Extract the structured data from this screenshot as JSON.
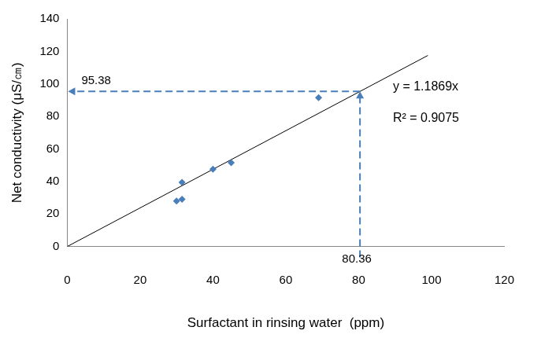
{
  "chart_data": {
    "type": "scatter",
    "x_label": "Surfactant in rinsing water  (ppm)",
    "y_label": "Net conductivity (μS/㎝)",
    "xlim": [
      0,
      120
    ],
    "xticks": [
      0,
      20,
      40,
      60,
      80,
      100,
      120
    ],
    "ylim": [
      0,
      140
    ],
    "yticks": [
      0,
      20,
      40,
      60,
      80,
      100,
      120,
      140
    ],
    "grid": false,
    "series": [
      {
        "type": "scatter",
        "color": "#4a7ebb",
        "marker": "diamond",
        "x": [
          30,
          31.5,
          31.5,
          40,
          45,
          69
        ],
        "values": [
          28,
          29,
          39.5,
          47.5,
          51.5,
          91.5
        ]
      },
      {
        "type": "line",
        "color": "#000000",
        "line_style": "solid",
        "x": [
          0,
          99
        ],
        "values": [
          0,
          117.5
        ]
      }
    ],
    "guide": {
      "x": 80.36,
      "y": 95.38,
      "color": "#4a7ebb",
      "line_style": "dashed"
    },
    "equation": "y = 1.1869x",
    "r_squared_label": "R² = 0.9075"
  }
}
